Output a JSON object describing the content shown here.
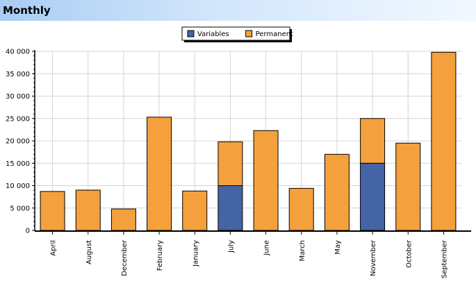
{
  "header": {
    "title": "Monthly"
  },
  "chart_data": {
    "type": "bar",
    "stacked": true,
    "categories": [
      "April",
      "August",
      "December",
      "February",
      "January",
      "July",
      "June",
      "March",
      "May",
      "November",
      "October",
      "September"
    ],
    "series": [
      {
        "name": "Variables",
        "color": "#4464a4",
        "values": [
          0,
          0,
          0,
          0,
          0,
          10000,
          0,
          0,
          0,
          15000,
          0,
          0
        ]
      },
      {
        "name": "Permanent",
        "color": "#f4a03c",
        "values": [
          8700,
          9000,
          4800,
          25300,
          8800,
          9800,
          22300,
          9400,
          17000,
          10000,
          19500,
          39800
        ]
      }
    ],
    "ylim": [
      0,
      40000
    ],
    "yticks": [
      "0",
      "5 000",
      "10 000",
      "15 000",
      "20 000",
      "25 000",
      "30 000",
      "35 000",
      "40 000"
    ],
    "grid": true,
    "legend_position": "top-center",
    "xlabel": "",
    "ylabel": ""
  }
}
